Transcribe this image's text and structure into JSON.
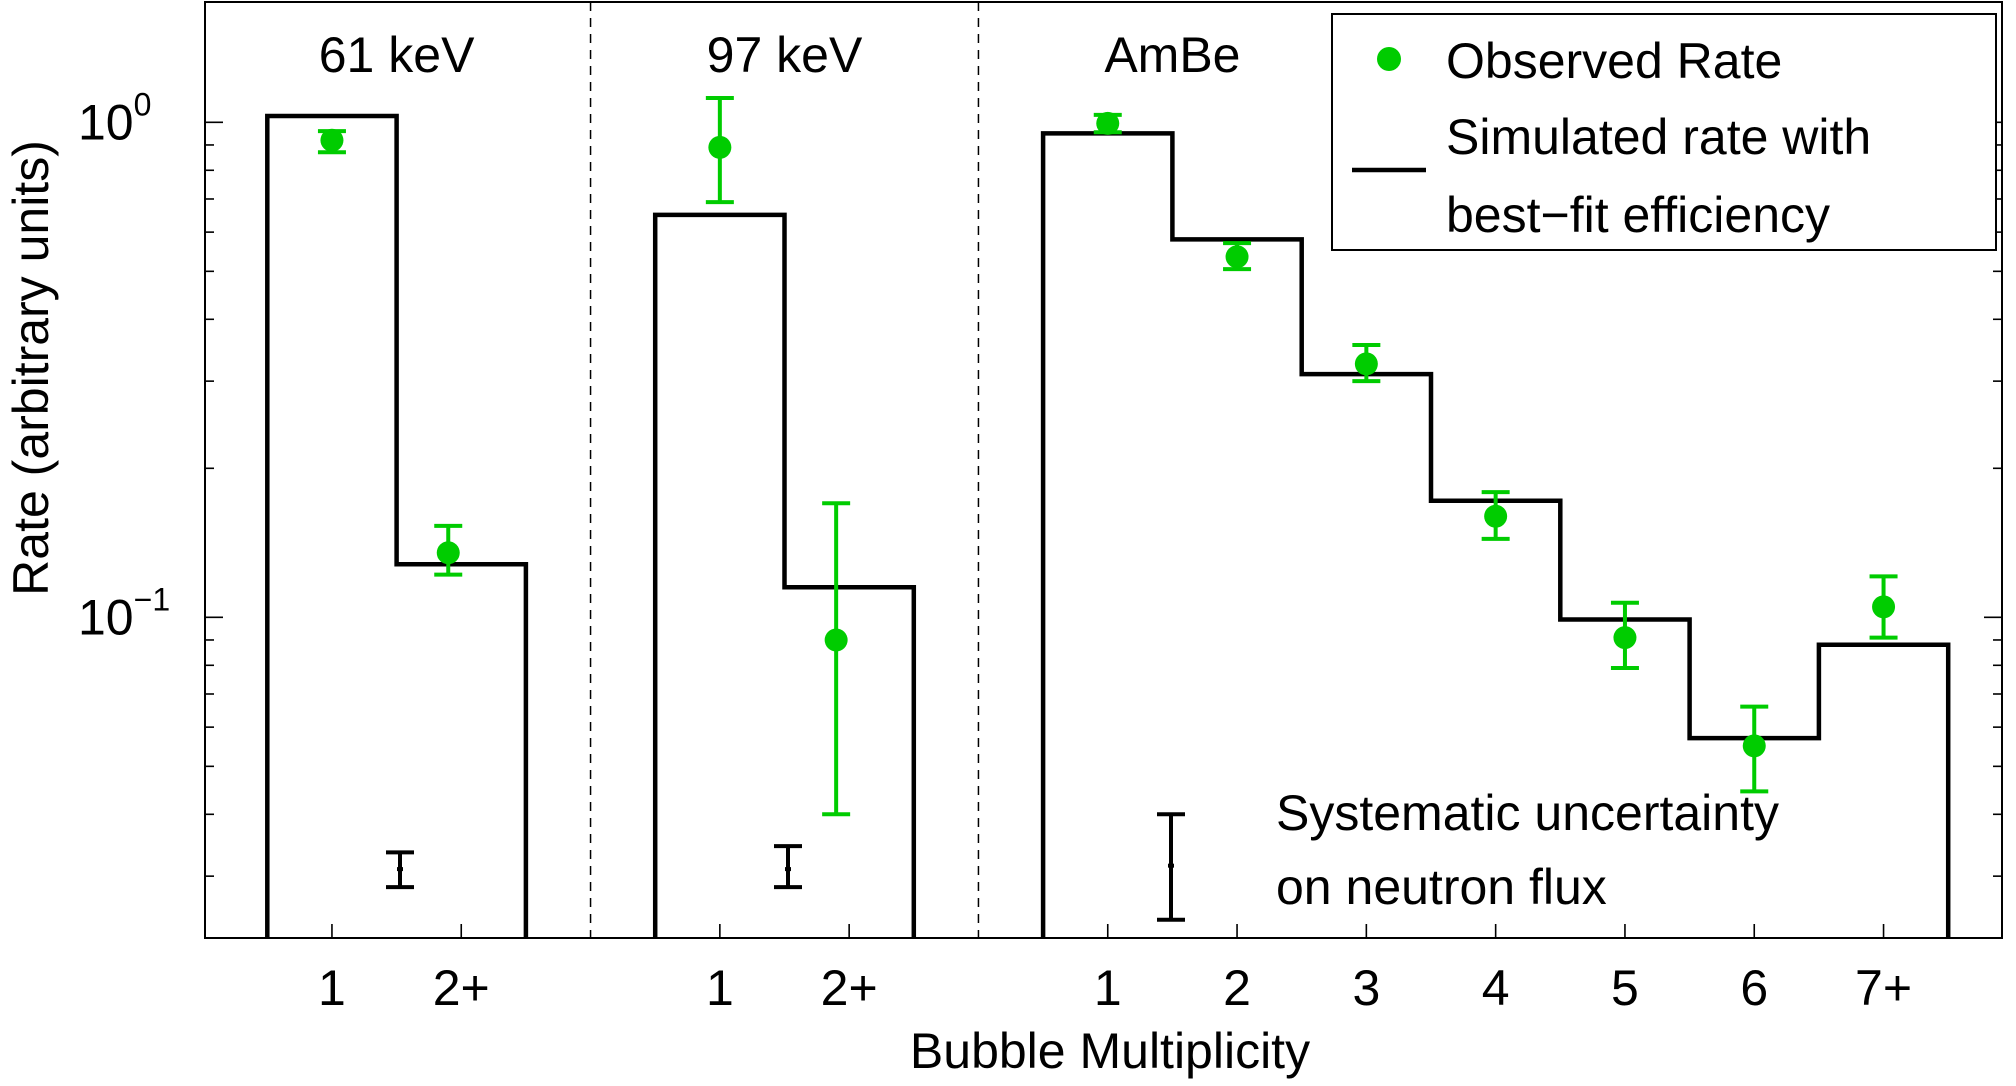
{
  "chart_data": {
    "type": "bar",
    "ylabel": "Rate (arbitrary units)",
    "xlabel": "Bubble Multiplicity",
    "yscale": "log",
    "ylim": [
      0.0225,
      1.75
    ],
    "yticks": [
      {
        "value": 1,
        "base": "10",
        "exp": "0"
      },
      {
        "value": 0.1,
        "base": "10",
        "exp": "−1"
      }
    ],
    "colors": {
      "observed": "#00cc00",
      "simulated": "#000000",
      "systematic": "#000000"
    },
    "legend": {
      "placement": "top-right",
      "entries": [
        {
          "key": "observed",
          "label_lines": [
            "Observed Rate"
          ]
        },
        {
          "key": "simulated",
          "label_lines": [
            "Simulated rate with",
            "best−fit efficiency"
          ]
        }
      ]
    },
    "systematic_note": {
      "placement": "bottom-right",
      "label_lines": [
        "Systematic uncertainty",
        "on neutron flux"
      ]
    },
    "panels": [
      {
        "title": "61 keV",
        "categories": [
          "1",
          "2+"
        ],
        "simulated": [
          1.03,
          0.128
        ],
        "observed": [
          0.92,
          0.135
        ],
        "observed_err_low": [
          0.87,
          0.122
        ],
        "observed_err_high": [
          0.96,
          0.153
        ],
        "systematic": {
          "center": 0.031,
          "low": 0.0285,
          "high": 0.0335
        }
      },
      {
        "title": "97 keV",
        "categories": [
          "1",
          "2+"
        ],
        "simulated": [
          0.65,
          0.115
        ],
        "observed": [
          0.89,
          0.09
        ],
        "observed_err_low": [
          0.69,
          0.04
        ],
        "observed_err_high": [
          1.12,
          0.17
        ],
        "systematic": {
          "center": 0.031,
          "low": 0.0285,
          "high": 0.0345
        }
      },
      {
        "title": "AmBe",
        "categories": [
          "1",
          "2",
          "3",
          "4",
          "5",
          "6",
          "7+"
        ],
        "simulated": [
          0.95,
          0.58,
          0.31,
          0.172,
          0.099,
          0.057,
          0.088
        ],
        "observed": [
          0.995,
          0.535,
          0.325,
          0.16,
          0.091,
          0.055,
          0.105
        ],
        "observed_err_low": [
          0.955,
          0.505,
          0.3,
          0.144,
          0.079,
          0.0445,
          0.091
        ],
        "observed_err_high": [
          1.035,
          0.57,
          0.355,
          0.179,
          0.107,
          0.066,
          0.121
        ],
        "systematic": {
          "center": 0.0315,
          "low": 0.0245,
          "high": 0.04
        }
      }
    ]
  }
}
